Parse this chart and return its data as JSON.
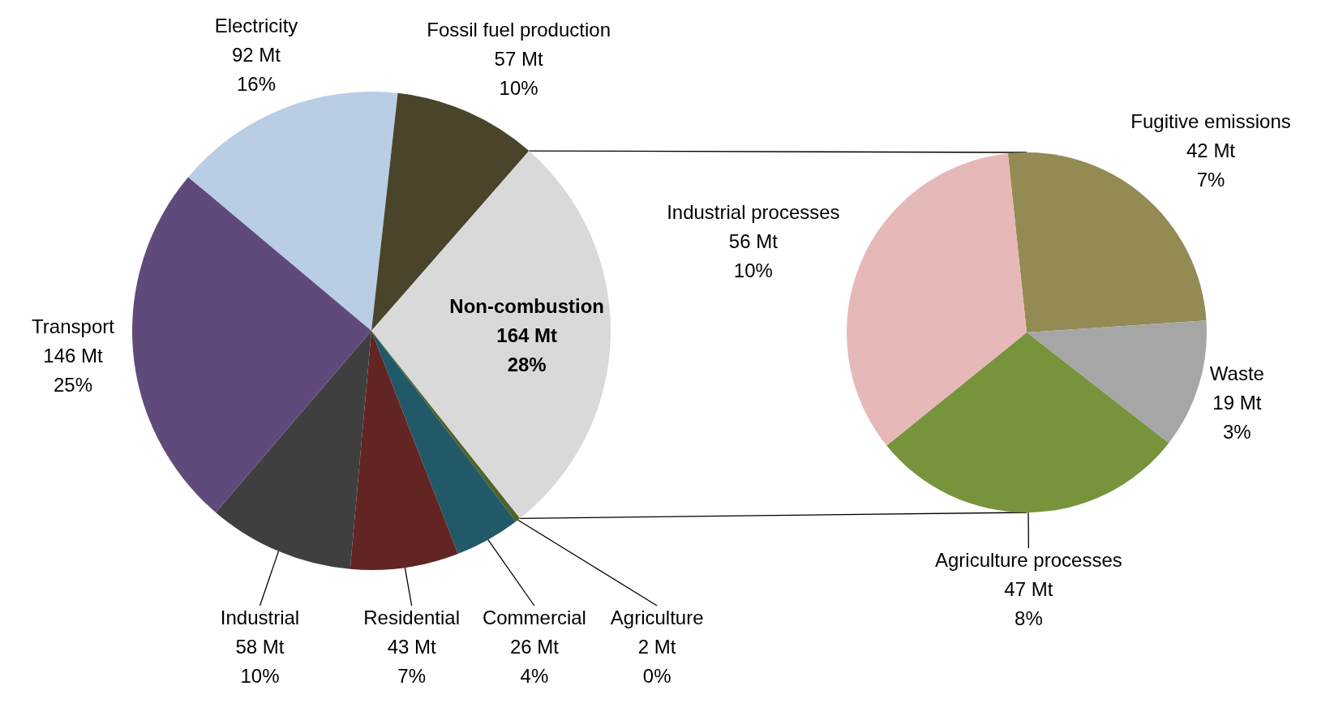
{
  "chart_data": [
    {
      "type": "pie",
      "categories": [
        "Electricity",
        "Fossil fuel production",
        "Non-combustion",
        "Agriculture",
        "Commercial",
        "Residential",
        "Industrial",
        "Transport"
      ],
      "values": [
        92,
        57,
        164,
        2,
        26,
        43,
        58,
        146
      ],
      "colors": [
        "#b9cde5",
        "#4a452a",
        "#d9d9d9",
        "#4f6228",
        "#215968",
        "#632523",
        "#3f3f3f",
        "#604a7b"
      ],
      "value_labels": [
        "92 Mt\n16%",
        "57 Mt\n10%",
        "164 Mt\n28%",
        "2 Mt\n0%",
        "26 Mt\n4%",
        "43 Mt\n7%",
        "58 Mt\n10%",
        "146 Mt\n25%"
      ]
    },
    {
      "type": "pie",
      "categories": [
        "Fugitive emissions",
        "Waste",
        "Agriculture processes",
        "Industrial processes"
      ],
      "values": [
        42,
        19,
        47,
        56
      ],
      "colors": [
        "#948a54",
        "#a6a6a6",
        "#77933c",
        "#e6b9b8"
      ],
      "value_labels": [
        "42 Mt\n7%",
        "19 Mt\n3%",
        "47 Mt\n8%",
        "56 Mt\n10%"
      ]
    }
  ]
}
